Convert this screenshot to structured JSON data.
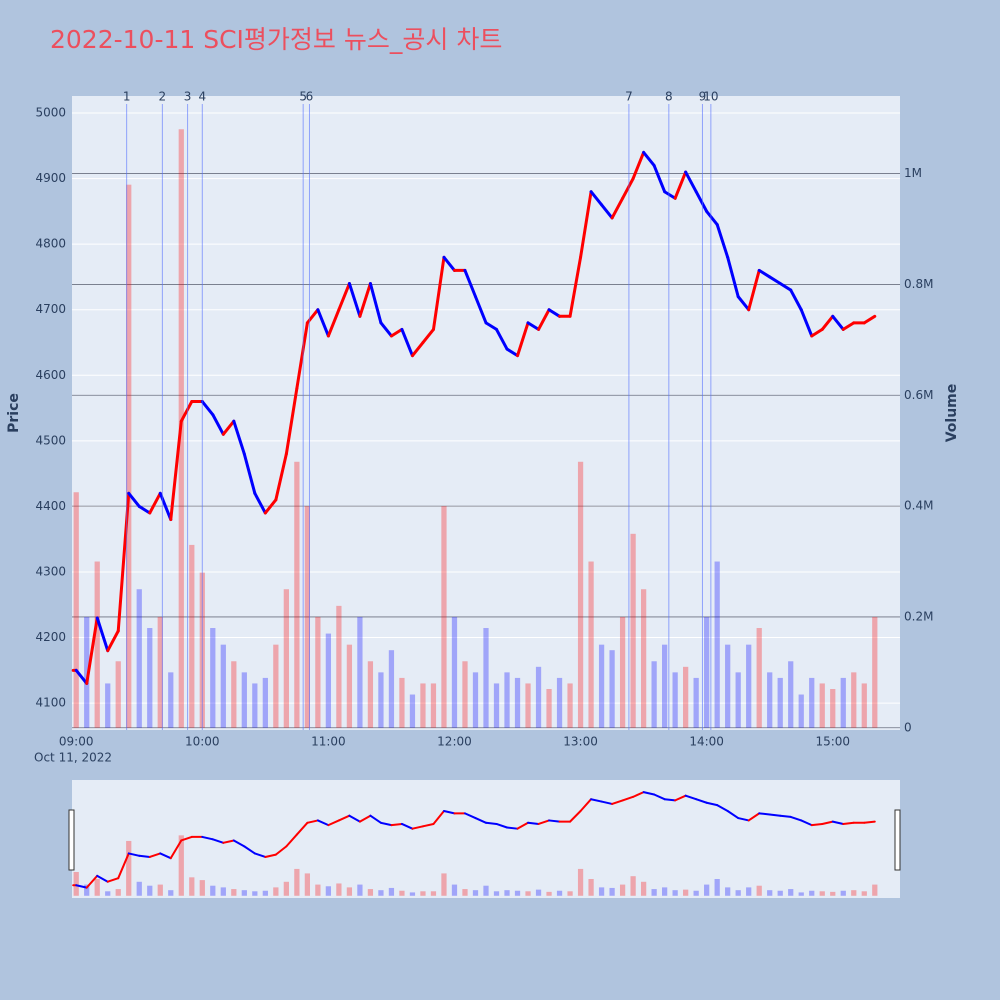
{
  "chart_data": {
    "type": "line",
    "title": "2022-10-11 SCI평가정보 뉴스_공시 차트",
    "x_date_label": "Oct 11, 2022",
    "ylabel": "Price",
    "y2label": "Volume",
    "x": [
      "09:00",
      "09:05",
      "09:10",
      "09:15",
      "09:20",
      "09:25",
      "09:30",
      "09:35",
      "09:40",
      "09:45",
      "09:50",
      "09:55",
      "10:00",
      "10:05",
      "10:10",
      "10:15",
      "10:20",
      "10:25",
      "10:30",
      "10:35",
      "10:40",
      "10:45",
      "10:50",
      "10:55",
      "11:00",
      "11:05",
      "11:10",
      "11:15",
      "11:20",
      "11:25",
      "11:30",
      "11:35",
      "11:40",
      "11:45",
      "11:50",
      "11:55",
      "12:00",
      "12:05",
      "12:10",
      "12:15",
      "12:20",
      "12:25",
      "12:30",
      "12:35",
      "12:40",
      "12:45",
      "12:50",
      "12:55",
      "13:00",
      "13:05",
      "13:10",
      "13:15",
      "13:20",
      "13:25",
      "13:30",
      "13:35",
      "13:40",
      "13:45",
      "13:50",
      "13:55",
      "14:00",
      "14:05",
      "14:10",
      "14:15",
      "14:20",
      "14:25",
      "14:30",
      "14:35",
      "14:40",
      "14:45",
      "14:50",
      "14:55",
      "15:00",
      "15:05",
      "15:10",
      "15:15",
      "15:20"
    ],
    "series": [
      {
        "values": [
          4150,
          4130,
          4230,
          4180,
          4210,
          4420,
          4400,
          4390,
          4420,
          4380,
          4530,
          4560,
          4560,
          4540,
          4510,
          4530,
          4480,
          4420,
          4390,
          4410,
          4480,
          4580,
          4680,
          4700,
          4660,
          4700,
          4740,
          4690,
          4740,
          4680,
          4660,
          4670,
          4630,
          4650,
          4670,
          4780,
          4760,
          4760,
          4720,
          4680,
          4670,
          4640,
          4630,
          4680,
          4670,
          4700,
          4690,
          4690,
          4780,
          4880,
          4860,
          4840,
          4870,
          4900,
          4940,
          4920,
          4880,
          4870,
          4910,
          4880,
          4850,
          4830,
          4780,
          4720,
          4700,
          4760,
          4750,
          4740,
          4730,
          4700,
          4660,
          4670,
          4690,
          4670,
          4680,
          4680,
          4690
        ],
        "up_color": "#ff0000",
        "down_color": "#0000ff"
      },
      {
        "axis": "y2",
        "values": [
          425000,
          200000,
          300000,
          80000,
          120000,
          980000,
          250000,
          180000,
          200000,
          100000,
          1080000,
          330000,
          280000,
          180000,
          150000,
          120000,
          100000,
          80000,
          90000,
          150000,
          250000,
          480000,
          400000,
          200000,
          170000,
          220000,
          150000,
          200000,
          120000,
          100000,
          140000,
          90000,
          60000,
          80000,
          80000,
          400000,
          200000,
          120000,
          100000,
          180000,
          80000,
          100000,
          90000,
          80000,
          110000,
          70000,
          90000,
          80000,
          480000,
          300000,
          150000,
          140000,
          200000,
          350000,
          250000,
          120000,
          150000,
          100000,
          110000,
          90000,
          200000,
          300000,
          150000,
          100000,
          150000,
          180000,
          100000,
          90000,
          120000,
          60000,
          90000,
          80000,
          70000,
          90000,
          100000,
          80000,
          200000
        ],
        "up_color": "#ff0000",
        "down_color": "#0000ff"
      }
    ],
    "xlim": [
      "08:58",
      "15:32"
    ],
    "xticks": [
      "09:00",
      "10:00",
      "11:00",
      "12:00",
      "13:00",
      "14:00",
      "15:00"
    ],
    "ylim": [
      4059,
      5026
    ],
    "yticks": [
      4100,
      4200,
      4300,
      4400,
      4500,
      4600,
      4700,
      4800,
      4900,
      5000
    ],
    "y2lim": [
      -4000,
      1140000
    ],
    "y2ticks": [
      0,
      {
        "value": 200000,
        "label": "0.2M"
      },
      {
        "value": 400000,
        "label": "0.4M"
      },
      {
        "value": 600000,
        "label": "0.6M"
      },
      {
        "value": 800000,
        "label": "0.8M"
      },
      {
        "value": 1000000,
        "label": "1M"
      }
    ],
    "annotations": [
      {
        "label": "1",
        "x": "09:24"
      },
      {
        "label": "2",
        "x": "09:41"
      },
      {
        "label": "3",
        "x": "09:53"
      },
      {
        "label": "4",
        "x": "10:00"
      },
      {
        "label": "5",
        "x": "10:48"
      },
      {
        "label": "6",
        "x": "10:51"
      },
      {
        "label": "7",
        "x": "13:23"
      },
      {
        "label": "8",
        "x": "13:42"
      },
      {
        "label": "9",
        "x": "13:58"
      },
      {
        "label": "10",
        "x": "14:02"
      }
    ],
    "grid": true
  }
}
